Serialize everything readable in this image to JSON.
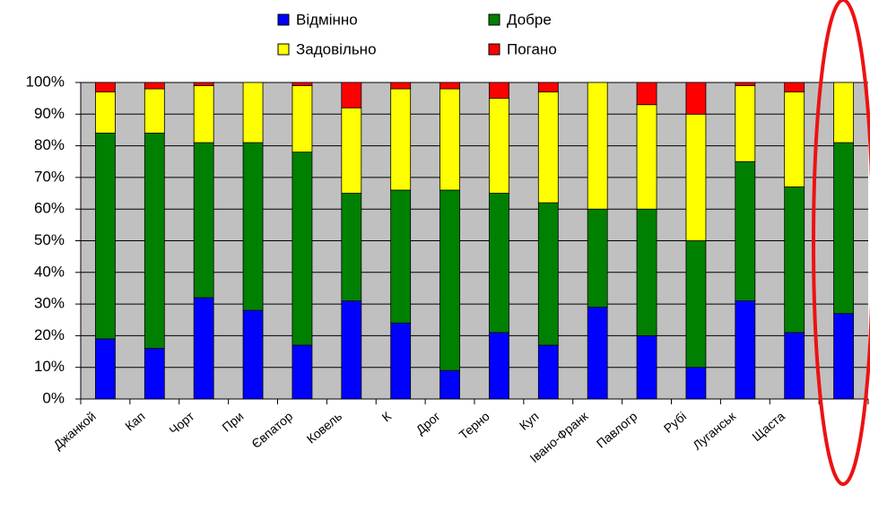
{
  "chart_data": {
    "type": "stacked_bar",
    "categories": [
      "Джанкой",
      "Кап",
      "Чорт",
      "При",
      "Євпатор",
      "Ковель",
      "К",
      "Дрог",
      "Терно",
      "Куп",
      "Івано-Франк",
      "Павлогр",
      "Рубі",
      "Луганськ",
      "Щаста",
      null
    ],
    "series": [
      {
        "name": "Відмінно",
        "color": "#0000ff",
        "values": [
          19,
          16,
          32,
          28,
          17,
          31,
          24,
          9,
          21,
          17,
          29,
          20,
          10,
          31,
          21,
          27
        ]
      },
      {
        "name": "Добре",
        "color": "#008000",
        "values": [
          65,
          68,
          49,
          53,
          61,
          34,
          42,
          57,
          44,
          45,
          31,
          40,
          40,
          44,
          46,
          54
        ]
      },
      {
        "name": "Задовільно",
        "color": "#ffff00",
        "values": [
          13,
          14,
          18,
          19,
          21,
          27,
          32,
          32,
          30,
          35,
          40,
          33,
          40,
          24,
          30,
          19
        ]
      },
      {
        "name": "Погано",
        "color": "#ff0000",
        "values": [
          3,
          2,
          1,
          0,
          1,
          8,
          2,
          2,
          5,
          3,
          0,
          7,
          10,
          1,
          3,
          0
        ]
      }
    ],
    "ylim": [
      0,
      100
    ],
    "yticks": [
      {
        "value": 0,
        "label": "0%"
      },
      {
        "value": 10,
        "label": "10%"
      },
      {
        "value": 20,
        "label": "20%"
      },
      {
        "value": 30,
        "label": "30%"
      },
      {
        "value": 40,
        "label": "40%"
      },
      {
        "value": 50,
        "label": "50%"
      },
      {
        "value": 60,
        "label": "60%"
      },
      {
        "value": 70,
        "label": "70%"
      },
      {
        "value": 80,
        "label": "80%"
      },
      {
        "value": 90,
        "label": "90%"
      },
      {
        "value": 100,
        "label": "100%"
      }
    ],
    "grid": true
  }
}
